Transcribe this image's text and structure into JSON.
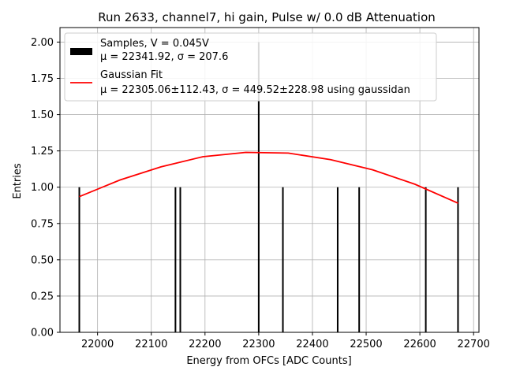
{
  "chart_data": {
    "type": "bar",
    "title": "Run 2633, channel7, hi gain, Pulse w/ 0.0 dB Attenuation",
    "xlabel": "Energy from OFCs [ADC Counts]",
    "ylabel": "Entries",
    "xlim": [
      21930,
      22710
    ],
    "ylim": [
      0,
      2.1
    ],
    "xticks": [
      22000,
      22100,
      22200,
      22300,
      22400,
      22500,
      22600,
      22700
    ],
    "yticks": [
      "0.00",
      "0.25",
      "0.50",
      "0.75",
      "1.00",
      "1.25",
      "1.50",
      "1.75",
      "2.00"
    ],
    "grid": true,
    "legend_position": "top-left",
    "samples": {
      "name": "Samples, V = 0.045V",
      "stats": "μ = 22341.92, σ = 207.6",
      "color": "#000000",
      "x": [
        21966,
        22145,
        22154,
        22300,
        22345,
        22447,
        22487,
        22611,
        22671
      ],
      "values": [
        1,
        1,
        1,
        2,
        1,
        1,
        1,
        1,
        1
      ]
    },
    "fit": {
      "name": "Gaussian Fit",
      "stats": "μ = 22305.06±112.43, σ = 449.52±228.98 using gaussidan",
      "color": "#ff0000",
      "x": [
        21966,
        22042,
        22118,
        22196,
        22276,
        22355,
        22434,
        22512,
        22591,
        22671
      ],
      "y": [
        0.935,
        1.05,
        1.14,
        1.21,
        1.24,
        1.235,
        1.19,
        1.12,
        1.02,
        0.89
      ]
    }
  }
}
